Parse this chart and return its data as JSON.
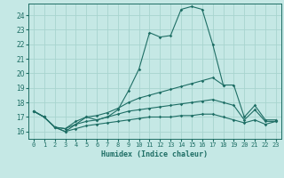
{
  "xlabel": "Humidex (Indice chaleur)",
  "ylabel": "",
  "bg_color": "#c5e8e5",
  "grid_color": "#a8d4cf",
  "line_color": "#1e6e65",
  "x_ticks": [
    0,
    1,
    2,
    3,
    4,
    5,
    6,
    7,
    8,
    9,
    10,
    11,
    12,
    13,
    14,
    15,
    16,
    17,
    18,
    19,
    20,
    21,
    22,
    23
  ],
  "ylim": [
    15.5,
    24.8
  ],
  "xlim": [
    -0.5,
    23.5
  ],
  "series": [
    {
      "x": [
        0,
        1,
        2,
        3,
        4,
        5,
        6,
        7,
        8,
        9,
        10,
        11,
        12,
        13,
        14,
        15,
        16,
        17,
        18
      ],
      "y": [
        17.4,
        17.0,
        16.3,
        16.0,
        16.5,
        17.0,
        16.8,
        17.0,
        17.5,
        18.8,
        20.3,
        22.8,
        22.5,
        22.6,
        24.4,
        24.6,
        24.4,
        22.0,
        19.2
      ]
    },
    {
      "x": [
        0,
        1,
        2,
        3,
        4,
        5,
        6,
        7,
        8,
        9,
        10,
        11,
        12,
        13,
        14,
        15,
        16,
        17,
        18,
        19,
        20,
        21,
        22,
        23
      ],
      "y": [
        17.4,
        17.0,
        16.3,
        16.2,
        16.7,
        17.0,
        17.1,
        17.3,
        17.6,
        18.0,
        18.3,
        18.5,
        18.7,
        18.9,
        19.1,
        19.3,
        19.5,
        19.7,
        19.2,
        19.2,
        17.0,
        17.8,
        16.8,
        16.8
      ]
    },
    {
      "x": [
        0,
        1,
        2,
        3,
        4,
        5,
        6,
        7,
        8,
        9,
        10,
        11,
        12,
        13,
        14,
        15,
        16,
        17,
        18,
        19,
        20,
        21,
        22,
        23
      ],
      "y": [
        17.4,
        17.0,
        16.3,
        16.2,
        16.5,
        16.7,
        16.8,
        17.0,
        17.2,
        17.4,
        17.5,
        17.6,
        17.7,
        17.8,
        17.9,
        18.0,
        18.1,
        18.2,
        18.0,
        17.8,
        16.8,
        17.5,
        16.7,
        16.7
      ]
    },
    {
      "x": [
        0,
        1,
        2,
        3,
        4,
        5,
        6,
        7,
        8,
        9,
        10,
        11,
        12,
        13,
        14,
        15,
        16,
        17,
        18,
        19,
        20,
        21,
        22,
        23
      ],
      "y": [
        17.4,
        17.0,
        16.3,
        16.0,
        16.2,
        16.4,
        16.5,
        16.6,
        16.7,
        16.8,
        16.9,
        17.0,
        17.0,
        17.0,
        17.1,
        17.1,
        17.2,
        17.2,
        17.0,
        16.8,
        16.6,
        16.8,
        16.5,
        16.7
      ]
    }
  ]
}
